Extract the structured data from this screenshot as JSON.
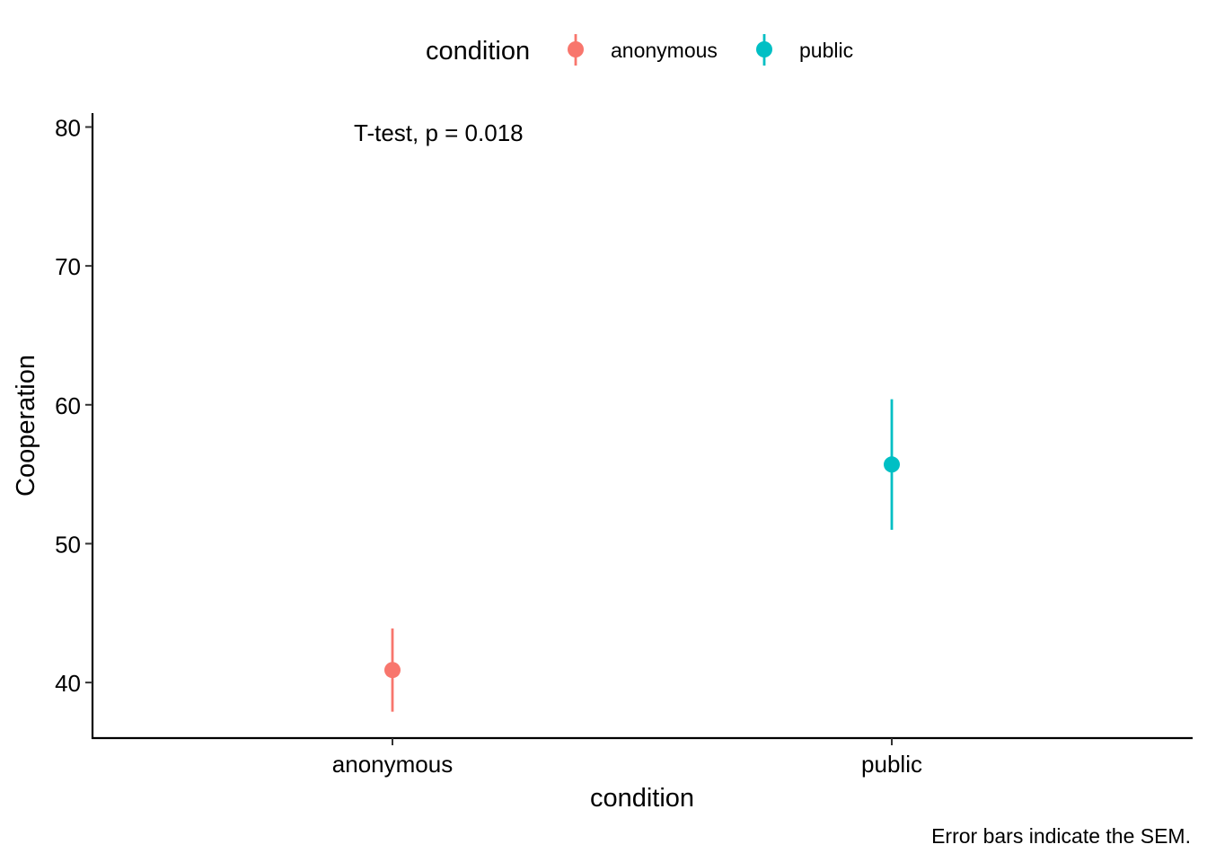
{
  "chart_data": {
    "type": "scatter",
    "xlabel": "condition",
    "ylabel": "Cooperation",
    "categories": [
      "anonymous",
      "public"
    ],
    "ylim": [
      36,
      81
    ],
    "yticks": [
      40,
      50,
      60,
      70,
      80
    ],
    "series": [
      {
        "name": "anonymous",
        "category": "anonymous",
        "mean": 40.9,
        "lower": 37.9,
        "upper": 43.9,
        "color": "#F8766D"
      },
      {
        "name": "public",
        "category": "public",
        "mean": 55.7,
        "lower": 51.0,
        "upper": 60.4,
        "color": "#00BFC4"
      }
    ],
    "legend": {
      "title": "condition",
      "position": "top"
    },
    "annotation": "T-test, p = 0.018",
    "caption": "Error bars indicate the SEM.",
    "grid": false
  }
}
